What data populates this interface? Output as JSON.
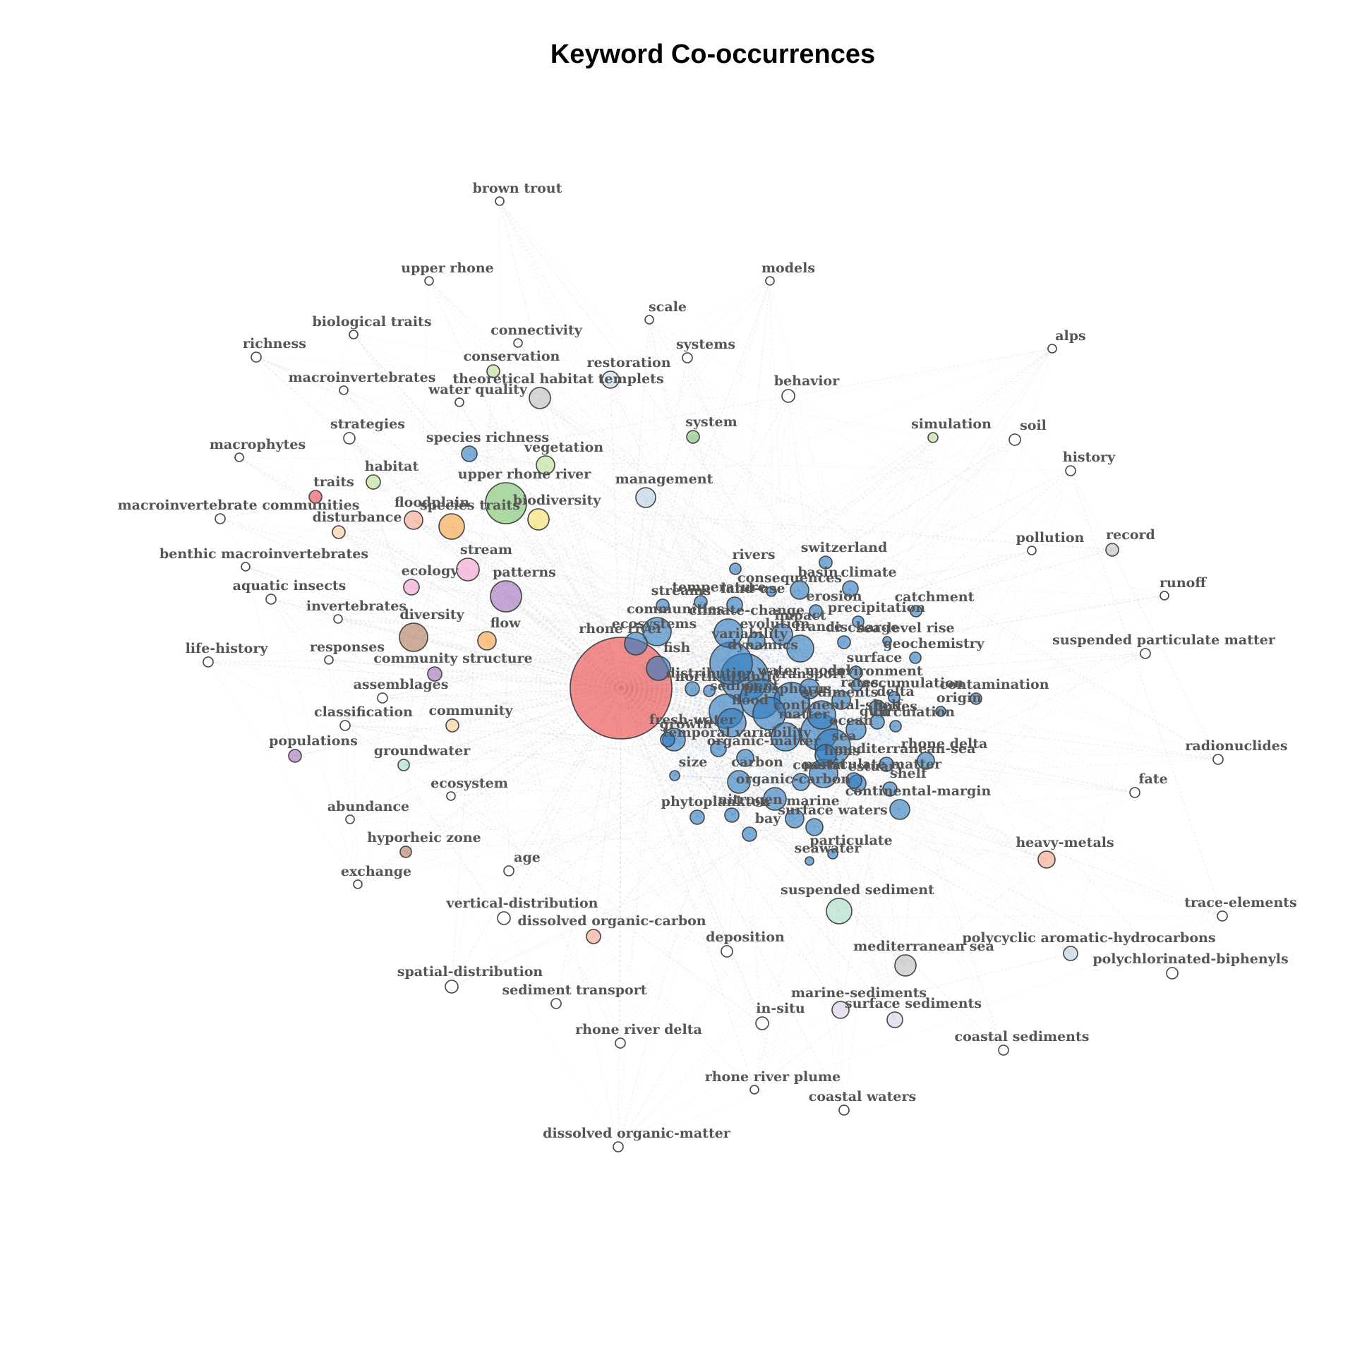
{
  "title": "Keyword Co-occurrences",
  "palette": {
    "blue": "#2f7bbf",
    "red": "#e8484a",
    "white": "#ffffff",
    "green": "#7cc16c",
    "lightgreen": "#b9de95",
    "orange": "#f5a142",
    "lightorange": "#f8cf95",
    "salmon": "#f6a58a",
    "pink": "#f29ed1",
    "purple": "#9f6fbf",
    "lavender": "#d9cfe6",
    "brown": "#b07a5c",
    "mint": "#a8dcc4",
    "yellow": "#f4e06a",
    "gray": "#bdbdbd",
    "lightblue": "#c6d8ea",
    "paleblue": "#b8cde4",
    "edge": "#c8c8c8",
    "edge_cluster": "#7aa6d6"
  },
  "nodes": [
    {
      "label": "rhone river",
      "g": "red"
    },
    {
      "label": "brown trout",
      "g": "white"
    },
    {
      "label": "upper rhone",
      "g": "white"
    },
    {
      "label": "models",
      "g": "white"
    },
    {
      "label": "scale",
      "g": "white"
    },
    {
      "label": "biological traits",
      "g": "white"
    },
    {
      "label": "connectivity",
      "g": "white"
    },
    {
      "label": "systems",
      "g": "white"
    },
    {
      "label": "richness",
      "g": "white"
    },
    {
      "label": "conservation",
      "g": "lightgreen"
    },
    {
      "label": "restoration",
      "g": "lightblue"
    },
    {
      "label": "alps",
      "g": "white"
    },
    {
      "label": "macroinvertebrates",
      "g": "white"
    },
    {
      "label": "water quality",
      "g": "white"
    },
    {
      "label": "theoretical habitat templets",
      "g": "gray"
    },
    {
      "label": "behavior",
      "g": "white"
    },
    {
      "label": "strategies",
      "g": "white"
    },
    {
      "label": "system",
      "g": "green"
    },
    {
      "label": "simulation",
      "g": "lightgreen"
    },
    {
      "label": "soil",
      "g": "white"
    },
    {
      "label": "macrophytes",
      "g": "white"
    },
    {
      "label": "species richness",
      "g": "blue"
    },
    {
      "label": "vegetation",
      "g": "lightgreen"
    },
    {
      "label": "history",
      "g": "white"
    },
    {
      "label": "habitat",
      "g": "lightgreen"
    },
    {
      "label": "management",
      "g": "paleblue"
    },
    {
      "label": "traits",
      "g": "red"
    },
    {
      "label": "upper rhone river",
      "g": "green"
    },
    {
      "label": "macroinvertebrate communities",
      "g": "white"
    },
    {
      "label": "floodplain",
      "g": "salmon"
    },
    {
      "label": "species traits",
      "g": "orange"
    },
    {
      "label": "biodiversity",
      "g": "yellow"
    },
    {
      "label": "disturbance",
      "g": "lightorange"
    },
    {
      "label": "pollution",
      "g": "white"
    },
    {
      "label": "record",
      "g": "gray"
    },
    {
      "label": "benthic macroinvertebrates",
      "g": "white"
    },
    {
      "label": "switzerland",
      "g": "blue"
    },
    {
      "label": "rivers",
      "g": "blue"
    },
    {
      "label": "stream",
      "g": "pink"
    },
    {
      "label": "ecology",
      "g": "pink"
    },
    {
      "label": "aquatic insects",
      "g": "white"
    },
    {
      "label": "consequences",
      "g": "blue"
    },
    {
      "label": "basin",
      "g": "blue"
    },
    {
      "label": "climate",
      "g": "blue"
    },
    {
      "label": "patterns",
      "g": "purple"
    },
    {
      "label": "temperature",
      "g": "blue"
    },
    {
      "label": "streams",
      "g": "blue"
    },
    {
      "label": "land-use",
      "g": "blue"
    },
    {
      "label": "erosion",
      "g": "blue"
    },
    {
      "label": "catchment",
      "g": "blue"
    },
    {
      "label": "runoff",
      "g": "white"
    },
    {
      "label": "invertebrates",
      "g": "white"
    },
    {
      "label": "precipitation",
      "g": "blue"
    },
    {
      "label": "diversity",
      "g": "brown"
    },
    {
      "label": "climate-change",
      "g": "blue"
    },
    {
      "label": "communities",
      "g": "blue"
    },
    {
      "label": "impact",
      "g": "blue"
    },
    {
      "label": "flow",
      "g": "orange"
    },
    {
      "label": "ecosystems",
      "g": "blue"
    },
    {
      "label": "evolution",
      "g": "blue"
    },
    {
      "label": "france",
      "g": "blue"
    },
    {
      "label": "discharge",
      "g": "blue"
    },
    {
      "label": "sea-level rise",
      "g": "blue"
    },
    {
      "label": "suspended particulate matter",
      "g": "white"
    },
    {
      "label": "responses",
      "g": "white"
    },
    {
      "label": "life-history",
      "g": "white"
    },
    {
      "label": "geochemistry",
      "g": "blue"
    },
    {
      "label": "community structure",
      "g": "purple"
    },
    {
      "label": "variability",
      "g": "blue"
    },
    {
      "label": "fish",
      "g": "blue"
    },
    {
      "label": "surface",
      "g": "blue"
    },
    {
      "label": "dynamics",
      "g": "blue"
    },
    {
      "label": "environment",
      "g": "blue"
    },
    {
      "label": "assemblages",
      "g": "white"
    },
    {
      "label": "distribution",
      "g": "blue"
    },
    {
      "label": "model",
      "g": "blue"
    },
    {
      "label": "north-atlantic",
      "g": "blue"
    },
    {
      "label": "water",
      "g": "blue"
    },
    {
      "label": "transport",
      "g": "blue"
    },
    {
      "label": "rates",
      "g": "blue"
    },
    {
      "label": "accumulation",
      "g": "blue"
    },
    {
      "label": "contamination",
      "g": "blue"
    },
    {
      "label": "origin",
      "g": "blue"
    },
    {
      "label": "classification",
      "g": "white"
    },
    {
      "label": "sediment",
      "g": "blue"
    },
    {
      "label": "phosphorus",
      "g": "blue"
    },
    {
      "label": "sediments",
      "g": "blue"
    },
    {
      "label": "delta",
      "g": "blue"
    },
    {
      "label": "community",
      "g": "lightorange"
    },
    {
      "label": "flood",
      "g": "blue"
    },
    {
      "label": "fresh-water",
      "g": "blue"
    },
    {
      "label": "temporal variability",
      "g": "blue"
    },
    {
      "label": "matter",
      "g": "blue"
    },
    {
      "label": "continental-shelf",
      "g": "blue"
    },
    {
      "label": "gulf",
      "g": "blue"
    },
    {
      "label": "fluxes",
      "g": "blue"
    },
    {
      "label": "circulation",
      "g": "blue"
    },
    {
      "label": "growth",
      "g": "blue"
    },
    {
      "label": "populations",
      "g": "purple"
    },
    {
      "label": "ocean",
      "g": "blue"
    },
    {
      "label": "rhone delta",
      "g": "blue"
    },
    {
      "label": "radionuclides",
      "g": "white"
    },
    {
      "label": "organic-matter",
      "g": "blue"
    },
    {
      "label": "sea",
      "g": "blue"
    },
    {
      "label": "groundwater",
      "g": "mint"
    },
    {
      "label": "mediterranean-sea",
      "g": "blue"
    },
    {
      "label": "size",
      "g": "blue"
    },
    {
      "label": "lions",
      "g": "blue"
    },
    {
      "label": "carbon",
      "g": "blue"
    },
    {
      "label": "estuary",
      "g": "blue"
    },
    {
      "label": "coastal",
      "g": "blue"
    },
    {
      "label": "particulate matter",
      "g": "blue"
    },
    {
      "label": "ecosystem",
      "g": "white"
    },
    {
      "label": "fate",
      "g": "white"
    },
    {
      "label": "organic-carbon",
      "g": "blue"
    },
    {
      "label": "shelf",
      "g": "blue"
    },
    {
      "label": "continental-margin",
      "g": "blue"
    },
    {
      "label": "abundance",
      "g": "white"
    },
    {
      "label": "phytoplankton",
      "g": "blue"
    },
    {
      "label": "nitrogen",
      "g": "blue"
    },
    {
      "label": "marine",
      "g": "blue"
    },
    {
      "label": "surface waters",
      "g": "blue"
    },
    {
      "label": "bay",
      "g": "blue"
    },
    {
      "label": "particulate",
      "g": "blue"
    },
    {
      "label": "hyporheic zone",
      "g": "brown"
    },
    {
      "label": "seawater",
      "g": "blue"
    },
    {
      "label": "heavy-metals",
      "g": "salmon"
    },
    {
      "label": "age",
      "g": "white"
    },
    {
      "label": "exchange",
      "g": "white"
    },
    {
      "label": "suspended sediment",
      "g": "mint"
    },
    {
      "label": "trace-elements",
      "g": "white"
    },
    {
      "label": "vertical-distribution",
      "g": "white"
    },
    {
      "label": "dissolved organic-carbon",
      "g": "salmon"
    },
    {
      "label": "deposition",
      "g": "white"
    },
    {
      "label": "polycyclic aromatic-hydrocarbons",
      "g": "paleblue"
    },
    {
      "label": "mediterranean sea",
      "g": "gray"
    },
    {
      "label": "polychlorinated-biphenyls",
      "g": "white"
    },
    {
      "label": "spatial-distribution",
      "g": "white"
    },
    {
      "label": "sediment transport",
      "g": "white"
    },
    {
      "label": "marine-sediments",
      "g": "lavender"
    },
    {
      "label": "surface sediments",
      "g": "lavender"
    },
    {
      "label": "in-situ",
      "g": "white"
    },
    {
      "label": "rhone river delta",
      "g": "white"
    },
    {
      "label": "coastal sediments",
      "g": "white"
    },
    {
      "label": "rhone river plume",
      "g": "white"
    },
    {
      "label": "coastal waters",
      "g": "white"
    },
    {
      "label": "dissolved organic-matter",
      "g": "white"
    }
  ]
}
